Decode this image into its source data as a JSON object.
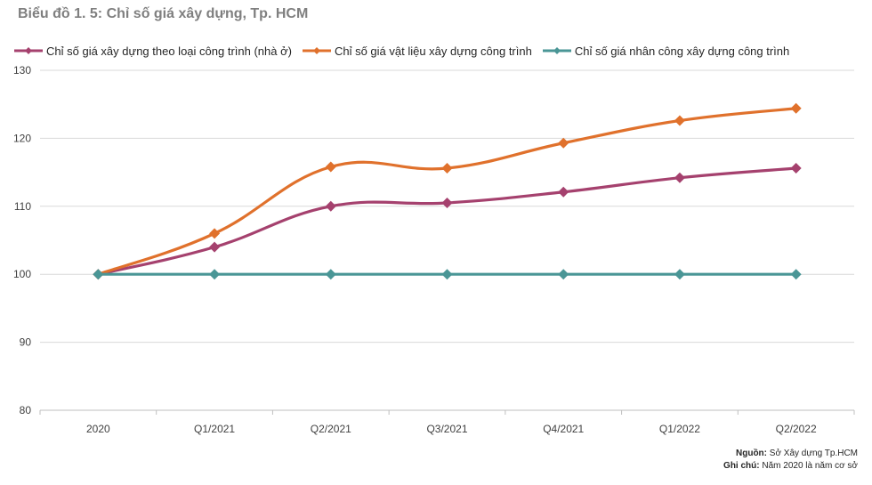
{
  "title": "Biểu đồ 1. 5: Chỉ số giá xây dựng, Tp. HCM",
  "footer": {
    "source_label": "Nguồn:",
    "source_text": "Sở Xây dựng Tp.HCM",
    "note_label": "Ghi chú:",
    "note_text": "Năm 2020 là năm cơ sở"
  },
  "chart_data": {
    "type": "line",
    "title": "Biểu đồ 1. 5: Chỉ số giá xây dựng, Tp. HCM",
    "categories": [
      "2020",
      "Q1/2021",
      "Q2/2021",
      "Q3/2021",
      "Q4/2021",
      "Q1/2022",
      "Q2/2022"
    ],
    "ylim": [
      80,
      130
    ],
    "yticks": [
      80,
      90,
      100,
      110,
      120,
      130
    ],
    "grid": true,
    "legend_position": "top",
    "series": [
      {
        "name": "Chỉ số giá xây dựng theo loại công trình (nhà ở)",
        "color": "#a5416e",
        "values": [
          100,
          104,
          110,
          110.5,
          112.1,
          114.2,
          115.6
        ]
      },
      {
        "name": "Chỉ số giá vật liệu xây dựng công trình",
        "color": "#e0712c",
        "values": [
          100,
          106,
          115.8,
          115.6,
          119.3,
          122.6,
          124.4
        ]
      },
      {
        "name": "Chỉ số giá nhân công xây dựng công trình",
        "color": "#4a9696",
        "values": [
          100,
          100,
          100,
          100,
          100,
          100,
          100
        ]
      }
    ]
  }
}
